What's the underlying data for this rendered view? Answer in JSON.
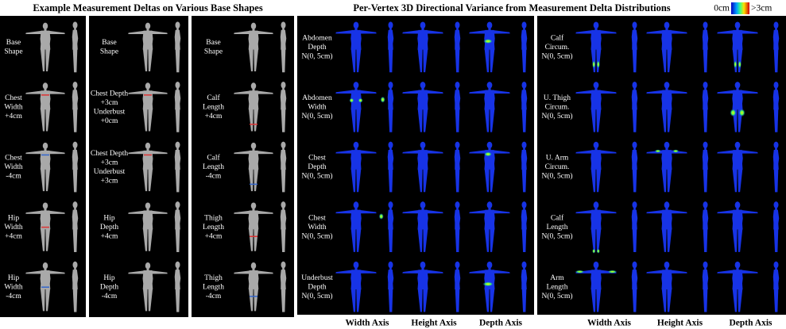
{
  "left_title": "Example Measurement Deltas on Various Base Shapes",
  "right_title": "Per-Vertex 3D Directional Variance from Measurement Delta Distributions",
  "colorbar": {
    "min_label": "0cm",
    "max_label": ">3cm"
  },
  "left_columns": [
    {
      "rows": [
        [
          "Base",
          "Shape"
        ],
        [
          "Chest",
          "Width",
          "+4cm"
        ],
        [
          "Chest",
          "Width",
          "-4cm"
        ],
        [
          "Hip",
          "Width",
          "+4cm"
        ],
        [
          "Hip",
          "Width",
          "-4cm"
        ]
      ]
    },
    {
      "rows": [
        [
          "Base",
          "Shape"
        ],
        [
          "Chest Depth",
          "+3cm",
          "Underbust",
          "+0cm"
        ],
        [
          "Chest Depth",
          "+3cm",
          "Underbust",
          "+3cm"
        ],
        [
          "Hip",
          "Depth",
          "+4cm"
        ],
        [
          "Hip",
          "Depth",
          "-4cm"
        ]
      ]
    },
    {
      "rows": [
        [
          "Base",
          "Shape"
        ],
        [
          "Calf",
          "Length",
          "+4cm"
        ],
        [
          "Calf",
          "Length",
          "-4cm"
        ],
        [
          "Thigh",
          "Length",
          "+4cm"
        ],
        [
          "Thigh",
          "Length",
          "-4cm"
        ]
      ]
    }
  ],
  "right_panels": [
    {
      "rows": [
        [
          "Abdomen",
          "Depth",
          "N(0, 5cm)"
        ],
        [
          "Abdomen",
          "Width",
          "N(0, 5cm)"
        ],
        [
          "Chest",
          "Depth",
          "N(0, 5cm)"
        ],
        [
          "Chest",
          "Width",
          "N(0, 5cm)"
        ],
        [
          "Underbust",
          "Depth",
          "N(0, 5cm)"
        ]
      ],
      "axes": [
        "Width Axis",
        "Height Axis",
        "Depth Axis"
      ]
    },
    {
      "rows": [
        [
          "Calf",
          "Circum.",
          "N(0, 5cm)"
        ],
        [
          "U. Thigh",
          "Circum.",
          "N(0, 5cm)"
        ],
        [
          "U. Arm",
          "Circum.",
          "N(0, 5cm)"
        ],
        [
          "Calf",
          "Length",
          "N(0, 5cm)"
        ],
        [
          "Arm",
          "Length",
          "N(0, 5cm)"
        ]
      ],
      "axes": [
        "Width Axis",
        "Height Axis",
        "Depth Axis"
      ]
    }
  ]
}
